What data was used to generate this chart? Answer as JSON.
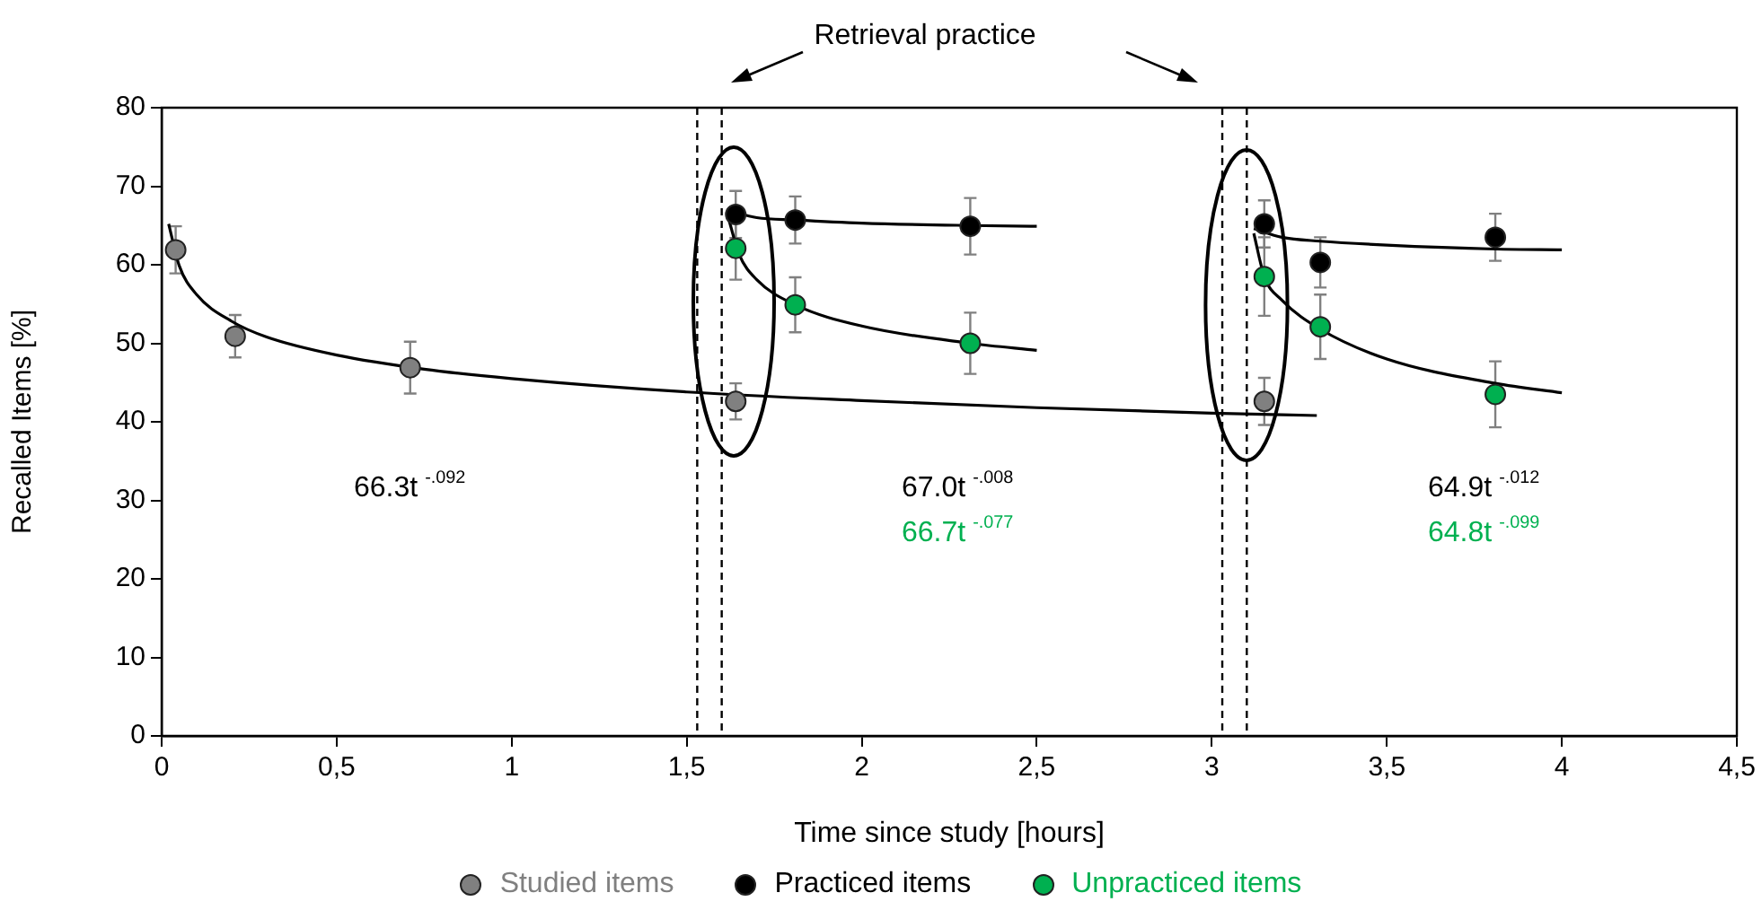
{
  "chart_data": {
    "type": "scatter",
    "xlabel": "Time since study [hours]",
    "ylabel": "Recalled Items [%]",
    "xlim": [
      0,
      4.5
    ],
    "xticks": [
      0,
      {
        "value": 0.5,
        "label": "0,5"
      },
      1,
      {
        "value": 1.5,
        "label": "1,5"
      },
      2,
      {
        "value": 2.5,
        "label": "2,5"
      },
      3,
      {
        "value": 3.5,
        "label": "3,5"
      },
      4,
      {
        "value": 4.5,
        "label": "4,5"
      }
    ],
    "ylim": [
      0,
      80
    ],
    "yticks": [
      0,
      10,
      20,
      30,
      40,
      50,
      60,
      70,
      80
    ],
    "legend": "bottom",
    "marker": "circle",
    "series": [
      {
        "name": "Studied items",
        "color": "#808080",
        "x": [
          0.04,
          0.21,
          0.71,
          1.64,
          3.15
        ],
        "values": [
          61.9,
          50.9,
          46.9,
          42.6,
          42.6
        ],
        "errors": [
          3,
          2.7,
          3.3,
          2.3,
          3
        ]
      },
      {
        "name": "Practiced items",
        "color": "#000000",
        "x": [
          1.64,
          1.81,
          2.31,
          3.15,
          3.31,
          3.81
        ],
        "values": [
          66.4,
          65.7,
          64.9,
          65.2,
          60.3,
          63.5
        ],
        "errors": [
          3,
          3,
          3.6,
          3,
          3.2,
          3
        ]
      },
      {
        "name": "Unpracticed items",
        "color": "#00b050",
        "x": [
          1.64,
          1.81,
          2.31,
          3.15,
          3.31,
          3.81
        ],
        "values": [
          62.1,
          54.9,
          50,
          58.5,
          52.1,
          43.5
        ],
        "errors": [
          4,
          3.5,
          3.9,
          5,
          4.1,
          4.2
        ]
      },
      {
        "type": "line",
        "marker": "none",
        "color": "#000000",
        "x": [
          0.02,
          0.05,
          0.1,
          0.2,
          0.3,
          0.5,
          0.75,
          1,
          1.5,
          2,
          2.5,
          3,
          3.3
        ],
        "values": [
          65.2,
          59.9,
          56.2,
          52.8,
          50.8,
          48.5,
          46.7,
          45.5,
          43.8,
          42.7,
          41.8,
          41.1,
          40.8
        ]
      },
      {
        "type": "line",
        "marker": "none",
        "color": "#000000",
        "x": [
          1.62,
          1.7,
          1.81,
          2,
          2.31,
          2.5
        ],
        "values": [
          66.9,
          66,
          65.7,
          65.3,
          65,
          64.9
        ]
      },
      {
        "type": "line",
        "marker": "none",
        "color": "#000000",
        "x": [
          1.62,
          1.65,
          1.7,
          1.81,
          2,
          2.31,
          2.5
        ],
        "values": [
          65.8,
          61.3,
          58.1,
          54.9,
          52.2,
          50,
          49.1
        ]
      },
      {
        "type": "line",
        "marker": "none",
        "color": "#000000",
        "x": [
          3.12,
          3.2,
          3.31,
          3.5,
          3.81,
          4
        ],
        "values": [
          64.6,
          63.5,
          63,
          62.5,
          62,
          61.9
        ]
      },
      {
        "type": "line",
        "marker": "none",
        "color": "#000000",
        "x": [
          3.12,
          3.15,
          3.2,
          3.31,
          3.5,
          3.81,
          4
        ],
        "values": [
          64,
          58.5,
          55.5,
          51.8,
          48,
          44.9,
          43.7
        ]
      }
    ],
    "ref_lines": [
      {
        "axis": "x",
        "value": 1.53,
        "color": "#000000",
        "line_style": "dashed"
      },
      {
        "axis": "x",
        "value": 1.6,
        "color": "#000000",
        "line_style": "dashed"
      },
      {
        "axis": "x",
        "value": 3.03,
        "color": "#000000",
        "line_style": "dashed"
      },
      {
        "axis": "x",
        "value": 3.1,
        "color": "#000000",
        "line_style": "dashed"
      }
    ],
    "annotations": [
      "Retrieval practice",
      "66.3t$^{-.092}$",
      "67.0t$^{-.008}$",
      "66.7t$^{-.077}$",
      "64.9t$^{-.012}$",
      "64.8t$^{-.099}$"
    ]
  }
}
